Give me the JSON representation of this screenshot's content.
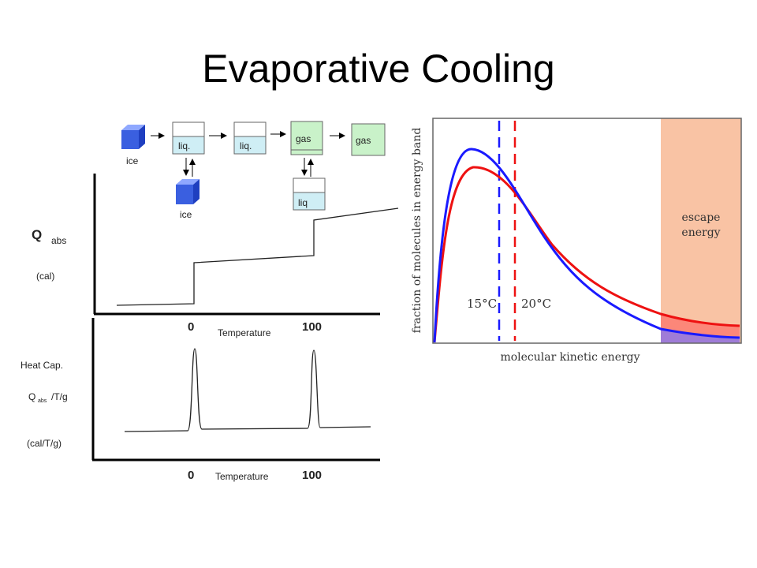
{
  "slide": {
    "title": "Evaporative Cooling"
  },
  "phase_diagram": {
    "ice": "ice",
    "liq": "liq.",
    "liq_short": "liq",
    "gas": "gas",
    "colors": {
      "ice": "#3a5fe0",
      "liquid": "#cfeef5",
      "gas": "#c9f2c9"
    }
  },
  "q_chart": {
    "ylabel_main": "Q",
    "ylabel_sub": "abs",
    "yunit": "(cal)",
    "xlabel": "Temperature",
    "ticks": [
      "0",
      "100"
    ]
  },
  "heatcap_chart": {
    "ylabel_line1": "Heat Cap.",
    "ylabel_q": "Q",
    "ylabel_sub": "abs",
    "ylabel_rest": "/T/g",
    "yunit": "(cal/T/g)",
    "xlabel": "Temperature",
    "ticks": [
      "0",
      "100"
    ]
  },
  "chart_data": {
    "type": "line",
    "title": "",
    "xlabel": "molecular kinetic energy",
    "ylabel": "fraction of molecules in energy band",
    "series": [
      {
        "name": "15°C",
        "color": "#1a1aff"
      },
      {
        "name": "20°C",
        "color": "#ee1111"
      }
    ],
    "markers": [
      {
        "label": "15°C",
        "color": "#1a1aff"
      },
      {
        "label": "20°C",
        "color": "#ee1111"
      }
    ],
    "region": {
      "label_line1": "escape",
      "label_line2": "energy",
      "color": "#f9c3a4"
    },
    "grid": false
  }
}
